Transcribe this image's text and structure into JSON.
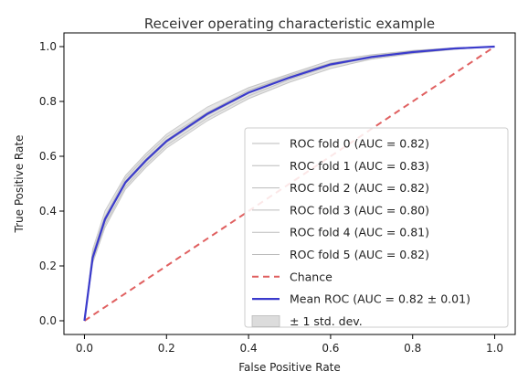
{
  "chart_data": {
    "type": "line",
    "title": "Receiver operating characteristic example",
    "xlabel": "False Positive Rate",
    "ylabel": "True Positive Rate",
    "xlim": [
      -0.05,
      1.05
    ],
    "ylim": [
      -0.05,
      1.05
    ],
    "xticks": [
      "0.0",
      "0.2",
      "0.4",
      "0.6",
      "0.8",
      "1.0"
    ],
    "yticks": [
      "0.0",
      "0.2",
      "0.4",
      "0.6",
      "0.8",
      "1.0"
    ],
    "grid": false,
    "legend_position": "lower-right",
    "colors": {
      "fold": "#bbbbbb",
      "chance": "#e06060",
      "mean": "#3b3bcc",
      "band": "#dcdcdc"
    },
    "series": [
      {
        "name": "ROC fold 0 (AUC = 0.82)",
        "role": "fold",
        "x": [
          0,
          0.02,
          0.05,
          0.1,
          0.15,
          0.2,
          0.3,
          0.4,
          0.5,
          0.6,
          0.7,
          0.8,
          0.9,
          1.0
        ],
        "y": [
          0,
          0.24,
          0.37,
          0.5,
          0.58,
          0.65,
          0.75,
          0.83,
          0.89,
          0.94,
          0.96,
          0.98,
          0.995,
          1.0
        ]
      },
      {
        "name": "ROC fold 1 (AUC = 0.83)",
        "role": "fold",
        "x": [
          0,
          0.02,
          0.05,
          0.1,
          0.15,
          0.2,
          0.3,
          0.4,
          0.5,
          0.6,
          0.7,
          0.8,
          0.9,
          1.0
        ],
        "y": [
          0,
          0.26,
          0.4,
          0.53,
          0.61,
          0.68,
          0.78,
          0.85,
          0.9,
          0.95,
          0.97,
          0.985,
          0.995,
          1.0
        ]
      },
      {
        "name": "ROC fold 2 (AUC = 0.82)",
        "role": "fold",
        "x": [
          0,
          0.02,
          0.05,
          0.1,
          0.15,
          0.2,
          0.3,
          0.4,
          0.5,
          0.6,
          0.7,
          0.8,
          0.9,
          1.0
        ],
        "y": [
          0,
          0.23,
          0.36,
          0.51,
          0.59,
          0.66,
          0.76,
          0.84,
          0.89,
          0.935,
          0.96,
          0.98,
          0.995,
          1.0
        ]
      },
      {
        "name": "ROC fold 3 (AUC = 0.80)",
        "role": "fold",
        "x": [
          0,
          0.02,
          0.05,
          0.1,
          0.15,
          0.2,
          0.3,
          0.4,
          0.5,
          0.6,
          0.7,
          0.8,
          0.9,
          1.0
        ],
        "y": [
          0,
          0.21,
          0.34,
          0.48,
          0.56,
          0.63,
          0.73,
          0.81,
          0.87,
          0.92,
          0.955,
          0.975,
          0.99,
          1.0
        ]
      },
      {
        "name": "ROC fold 4 (AUC = 0.81)",
        "role": "fold",
        "x": [
          0,
          0.02,
          0.05,
          0.1,
          0.15,
          0.2,
          0.3,
          0.4,
          0.5,
          0.6,
          0.7,
          0.8,
          0.9,
          1.0
        ],
        "y": [
          0,
          0.22,
          0.35,
          0.49,
          0.57,
          0.64,
          0.74,
          0.82,
          0.88,
          0.93,
          0.96,
          0.98,
          0.99,
          1.0
        ]
      },
      {
        "name": "ROC fold 5 (AUC = 0.82)",
        "role": "fold",
        "x": [
          0,
          0.02,
          0.05,
          0.1,
          0.15,
          0.2,
          0.3,
          0.4,
          0.5,
          0.6,
          0.7,
          0.8,
          0.9,
          1.0
        ],
        "y": [
          0,
          0.25,
          0.38,
          0.52,
          0.6,
          0.67,
          0.76,
          0.84,
          0.895,
          0.94,
          0.965,
          0.985,
          0.995,
          1.0
        ]
      },
      {
        "name": "Chance",
        "role": "chance",
        "x": [
          0,
          1.0
        ],
        "y": [
          0,
          1.0
        ]
      },
      {
        "name": "Mean ROC (AUC = 0.82 ± 0.01)",
        "role": "mean",
        "x": [
          0,
          0.02,
          0.05,
          0.1,
          0.15,
          0.2,
          0.3,
          0.4,
          0.5,
          0.6,
          0.7,
          0.8,
          0.9,
          1.0
        ],
        "y": [
          0,
          0.23,
          0.37,
          0.505,
          0.585,
          0.655,
          0.755,
          0.832,
          0.887,
          0.935,
          0.962,
          0.98,
          0.993,
          1.0
        ]
      },
      {
        "name": "± 1 std. dev.",
        "role": "band",
        "x": [
          0,
          0.02,
          0.05,
          0.1,
          0.15,
          0.2,
          0.3,
          0.4,
          0.5,
          0.6,
          0.7,
          0.8,
          0.9,
          1.0
        ],
        "y_lower": [
          0,
          0.21,
          0.345,
          0.48,
          0.56,
          0.632,
          0.732,
          0.81,
          0.87,
          0.92,
          0.952,
          0.972,
          0.988,
          1.0
        ],
        "y_upper": [
          0,
          0.25,
          0.395,
          0.53,
          0.61,
          0.678,
          0.778,
          0.852,
          0.903,
          0.95,
          0.972,
          0.988,
          0.997,
          1.0
        ]
      }
    ]
  }
}
